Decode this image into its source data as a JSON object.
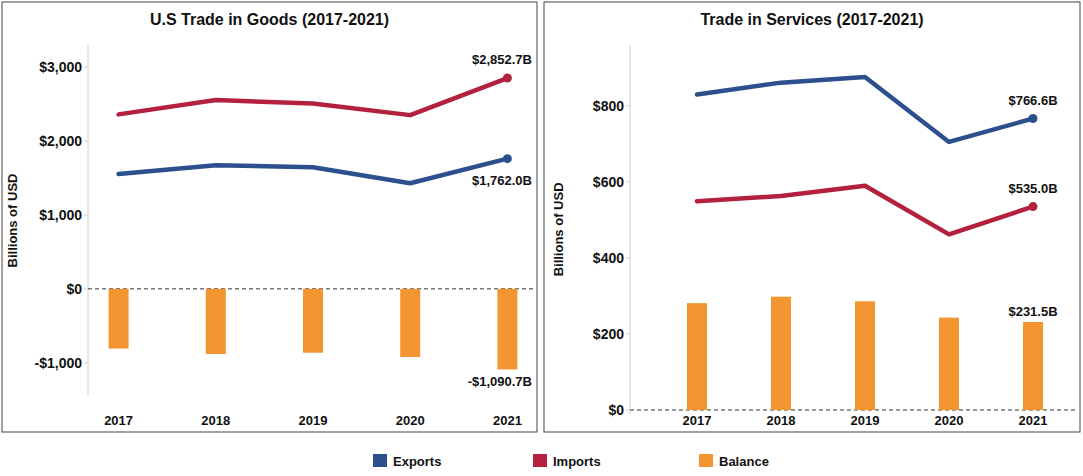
{
  "chart_data": [
    {
      "type": "line",
      "title": "U.S Trade in Goods (2017-2021)",
      "y_label": "Billions of USD",
      "categories": [
        "2017",
        "2018",
        "2019",
        "2020",
        "2021"
      ],
      "series": [
        {
          "name": "Exports",
          "type": "line",
          "color": "#2c4f8e",
          "values": [
            1553,
            1674,
            1645,
            1429,
            1762.0
          ],
          "value_labels": [
            null,
            null,
            null,
            null,
            "$1,762.0B"
          ]
        },
        {
          "name": "Imports",
          "type": "line",
          "color": "#b3213f",
          "values": [
            2361,
            2555,
            2509,
            2351,
            2852.7
          ],
          "value_labels": [
            null,
            null,
            null,
            null,
            "$2,852.7B"
          ]
        },
        {
          "name": "Balance",
          "type": "bar",
          "color": "#f39530",
          "values": [
            -808,
            -881,
            -864,
            -922,
            -1090.7
          ],
          "value_labels": [
            null,
            null,
            null,
            null,
            "-$1,090.7B"
          ]
        }
      ],
      "ylim": [
        -1450,
        3300
      ],
      "yticks": [
        {
          "value": -1000,
          "label": "-$1,000"
        },
        {
          "value": 0,
          "label": "$0"
        },
        {
          "value": 1000,
          "label": "$1,000"
        },
        {
          "value": 2000,
          "label": "$2,000"
        },
        {
          "value": 3000,
          "label": "$3,000"
        }
      ],
      "legend": "bottom"
    },
    {
      "type": "line",
      "title": "Trade in Services (2017-2021)",
      "y_label": "Billions of USD",
      "categories": [
        "2017",
        "2018",
        "2019",
        "2020",
        "2021"
      ],
      "series": [
        {
          "name": "Exports",
          "type": "line",
          "color": "#2c4f8e",
          "values": [
            830,
            861,
            876,
            705,
            766.6
          ],
          "value_labels": [
            null,
            null,
            null,
            null,
            "$766.6B"
          ]
        },
        {
          "name": "Imports",
          "type": "line",
          "color": "#b3213f",
          "values": [
            549,
            563,
            590,
            462,
            535.0
          ],
          "value_labels": [
            null,
            null,
            null,
            null,
            "$535.0B"
          ]
        },
        {
          "name": "Balance",
          "type": "bar",
          "color": "#f39530",
          "values": [
            281,
            298,
            286,
            243,
            231.5
          ],
          "value_labels": [
            null,
            null,
            null,
            null,
            "$231.5B"
          ]
        }
      ],
      "ylim": [
        -10,
        960
      ],
      "yticks": [
        {
          "value": 0,
          "label": "$0"
        },
        {
          "value": 200,
          "label": "$200"
        },
        {
          "value": 400,
          "label": "$400"
        },
        {
          "value": 600,
          "label": "$600"
        },
        {
          "value": 800,
          "label": "$800"
        }
      ]
    }
  ]
}
